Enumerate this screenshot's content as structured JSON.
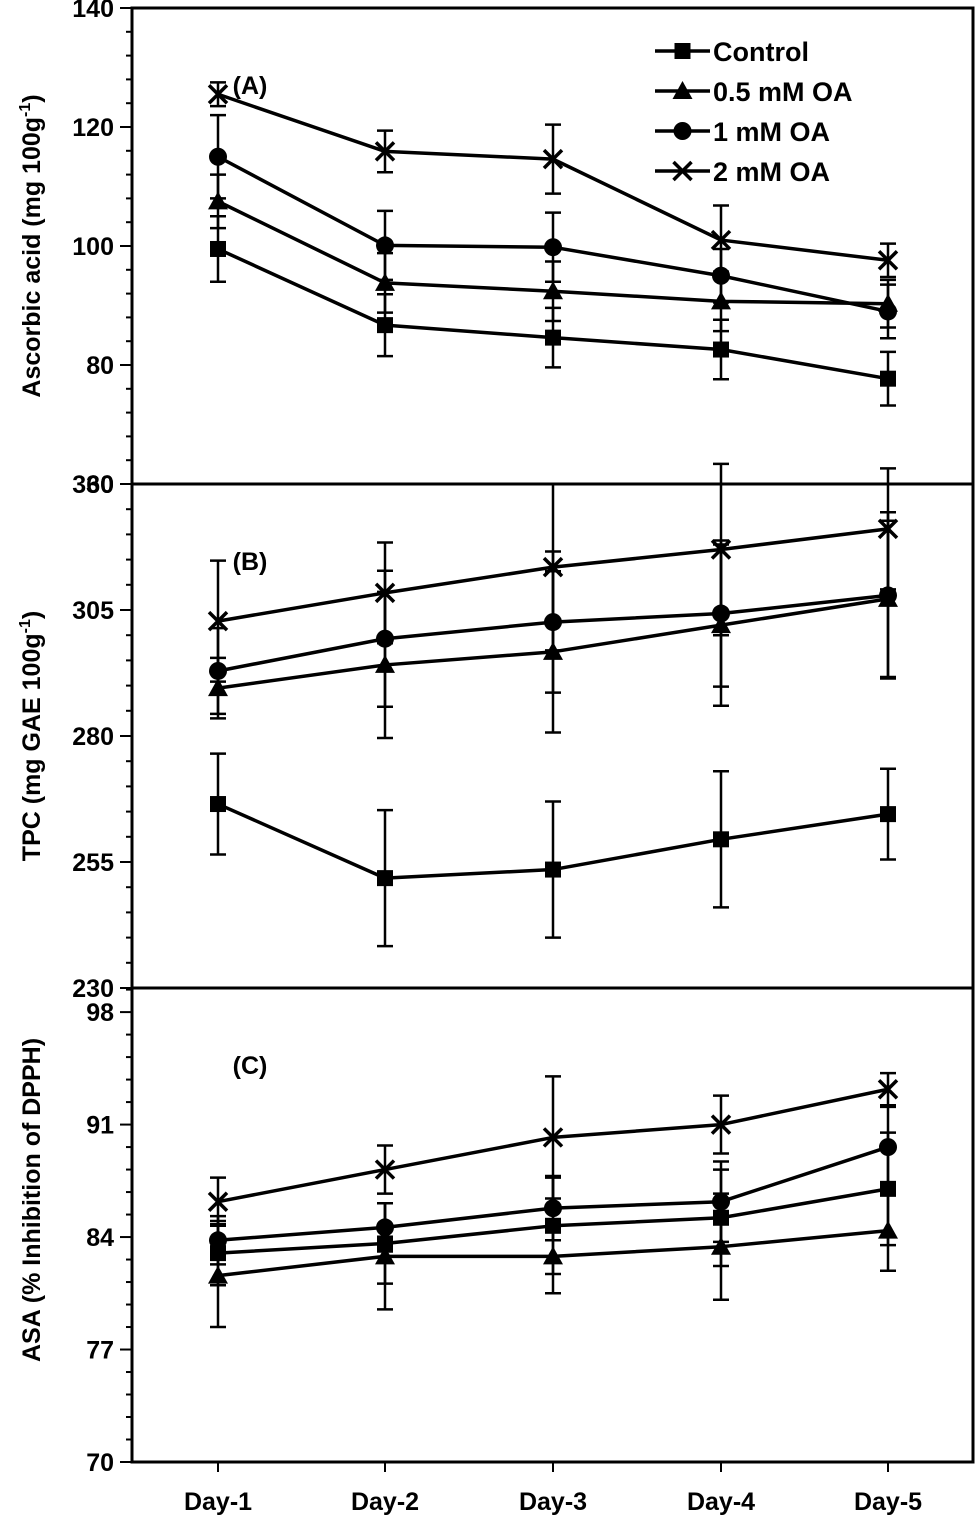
{
  "chart_data": {
    "type": "line",
    "categories": [
      "Day-1",
      "Day-2",
      "Day-3",
      "Day-4",
      "Day-5"
    ],
    "legend": {
      "placement": "top-right",
      "entries": [
        {
          "label": "Control",
          "marker": "square"
        },
        {
          "label": "0.5 mM OA",
          "marker": "triangle"
        },
        {
          "label": "1 mM OA",
          "marker": "circle"
        },
        {
          "label": "2 mM OA",
          "marker": "cross"
        }
      ]
    },
    "panels": [
      {
        "panel_label": "(A)",
        "ylabel_main": "Ascorbic acid (mg 100g",
        "ylabel_sup": "-1",
        "ylabel_end": ")",
        "ylim": [
          60,
          140
        ],
        "yticks": [
          60,
          80,
          100,
          120,
          140
        ],
        "ytick_labels": [
          "60",
          "80",
          "100",
          "120",
          "140"
        ],
        "series": [
          {
            "name": "Control",
            "marker": "square",
            "values": [
              99.5,
              86.7,
              84.6,
              82.6,
              77.7
            ],
            "errors": [
              5.5,
              5.2,
              5.0,
              5.0,
              4.5
            ]
          },
          {
            "name": "0.5 mM OA",
            "marker": "triangle",
            "values": [
              107.5,
              93.8,
              92.4,
              90.7,
              90.3
            ],
            "errors": [
              4.5,
              5.0,
              5.0,
              5.0,
              4.0
            ]
          },
          {
            "name": "1 mM OA",
            "marker": "circle",
            "values": [
              115.0,
              100.1,
              99.8,
              95.0,
              89.0
            ],
            "errors": [
              7.0,
              5.8,
              5.8,
              4.5,
              4.5
            ]
          },
          {
            "name": "2 mM OA",
            "marker": "cross",
            "values": [
              125.5,
              115.9,
              114.6,
              101.0,
              97.6
            ],
            "errors": [
              2.0,
              3.5,
              5.8,
              5.8,
              2.8
            ]
          }
        ]
      },
      {
        "panel_label": "(B)",
        "ylabel_main": "TPC (mg GAE 100g",
        "ylabel_sup": "-1",
        "ylabel_end": ")",
        "ylim": [
          230,
          330
        ],
        "yticks": [
          230,
          255,
          280,
          305,
          330
        ],
        "ytick_labels": [
          "230",
          "255",
          "280",
          "305",
          "330"
        ],
        "series": [
          {
            "name": "Control",
            "marker": "square",
            "values": [
              266.5,
              251.8,
              253.5,
              259.5,
              264.5
            ],
            "errors": [
              10.0,
              13.5,
              13.5,
              13.5,
              9.0
            ]
          },
          {
            "name": "0.5 mM OA",
            "marker": "triangle",
            "values": [
              289.5,
              294.1,
              296.7,
              302.0,
              307.2
            ],
            "errors": [
              6.0,
              14.5,
              16.0,
              16.0,
              15.5
            ]
          },
          {
            "name": "1 mM OA",
            "marker": "circle",
            "values": [
              292.9,
              299.3,
              302.6,
              304.3,
              307.9
            ],
            "errors": [
              8.5,
              13.5,
              14.0,
              14.5,
              16.5
            ]
          },
          {
            "name": "2 mM OA",
            "marker": "cross",
            "values": [
              302.8,
              308.4,
              313.5,
              317.0,
              321.1
            ],
            "errors": [
              12.0,
              10.0,
              16.5,
              17.0,
              12.0
            ]
          }
        ]
      },
      {
        "panel_label": "(C)",
        "ylabel_main": "ASA (% Inhibition of DPPH)",
        "ylabel_sup": "",
        "ylabel_end": "",
        "ylim": [
          70,
          99.5
        ],
        "yticks": [
          70,
          77,
          84,
          91,
          98
        ],
        "ytick_labels": [
          "70",
          "77",
          "84",
          "91",
          "98"
        ],
        "series": [
          {
            "name": "Control",
            "marker": "square",
            "values": [
              83.0,
              83.6,
              84.7,
              85.2,
              87.0
            ],
            "errors": [
              2.0,
              2.5,
              3.0,
              3.0,
              3.5
            ]
          },
          {
            "name": "0.5 mM OA",
            "marker": "triangle",
            "values": [
              81.6,
              82.8,
              82.8,
              83.4,
              84.4
            ],
            "errors": [
              3.2,
              3.3,
              2.3,
              3.3,
              2.5
            ]
          },
          {
            "name": "1 mM OA",
            "marker": "circle",
            "values": [
              83.8,
              84.6,
              85.8,
              86.2,
              89.6
            ],
            "errors": [
              1.5,
              1.5,
              2.0,
              2.5,
              2.5
            ]
          },
          {
            "name": "2 mM OA",
            "marker": "cross",
            "values": [
              86.2,
              88.2,
              90.2,
              91.0,
              93.2
            ],
            "errors": [
              1.5,
              1.5,
              3.8,
              1.8,
              1.0
            ]
          }
        ]
      }
    ],
    "grid": false
  }
}
